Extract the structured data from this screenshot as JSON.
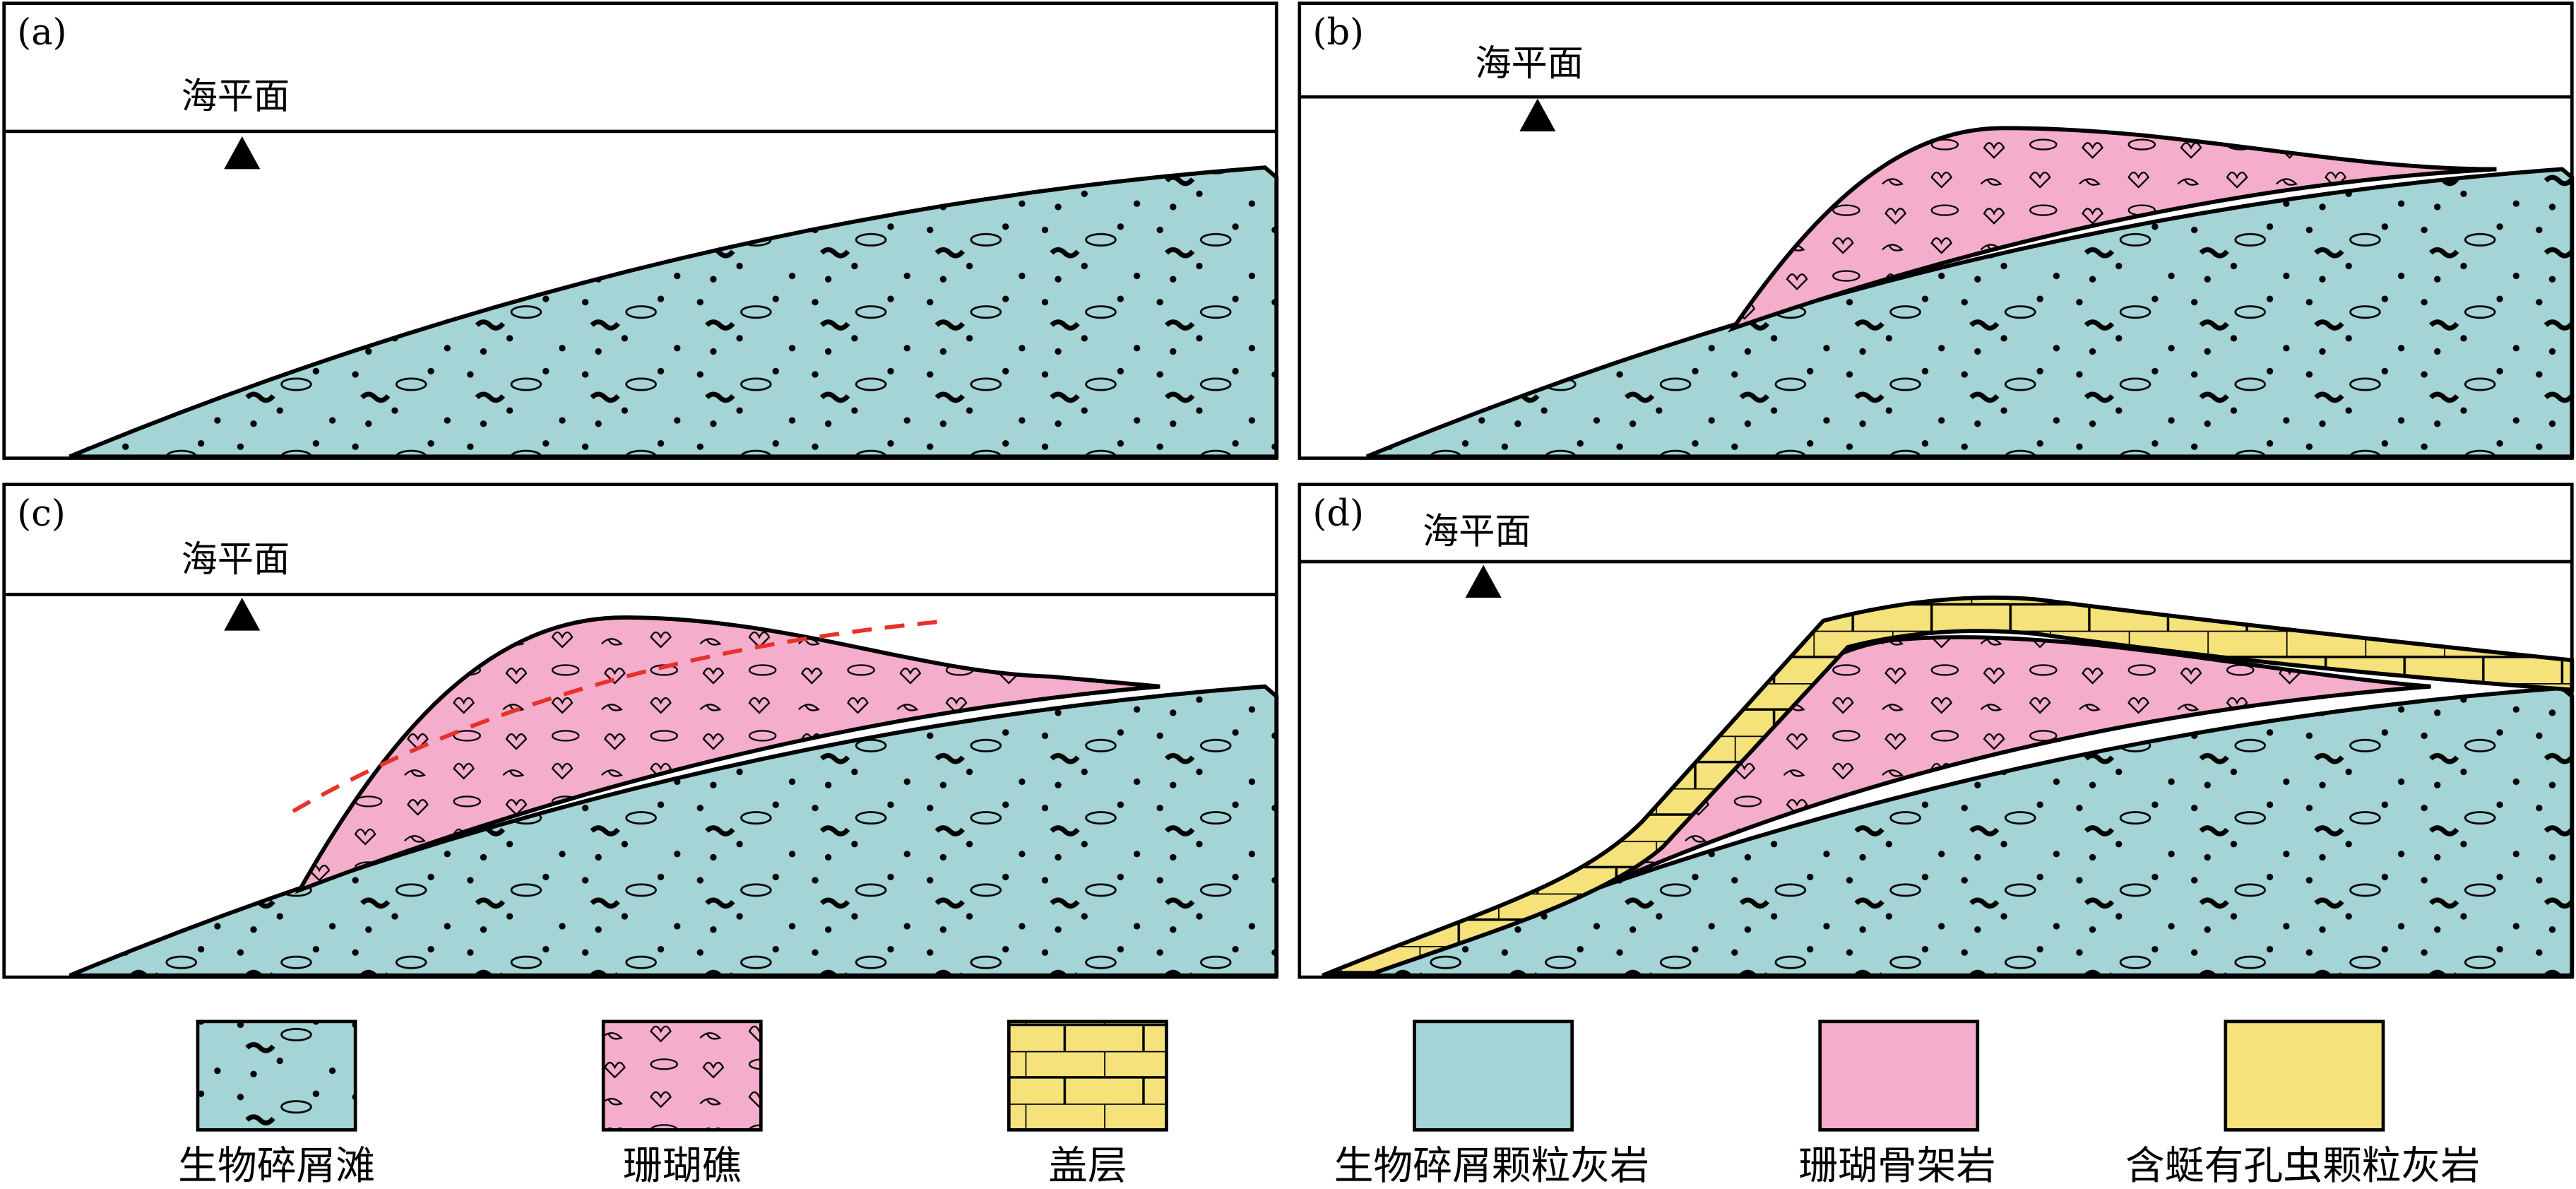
{
  "panels": [
    {
      "label": "(a)",
      "sea_level": "海平面"
    },
    {
      "label": "(b)",
      "sea_level": "海平面"
    },
    {
      "label": "(c)",
      "sea_level": "海平面"
    },
    {
      "label": "(d)",
      "sea_level": "海平面"
    }
  ],
  "legend": [
    "生物碎屑滩",
    "珊瑚礁",
    "盖层",
    "生物碎屑颗粒灰岩",
    "珊瑚骨架岩",
    "含蜓有孔虫颗粒灰岩"
  ]
}
